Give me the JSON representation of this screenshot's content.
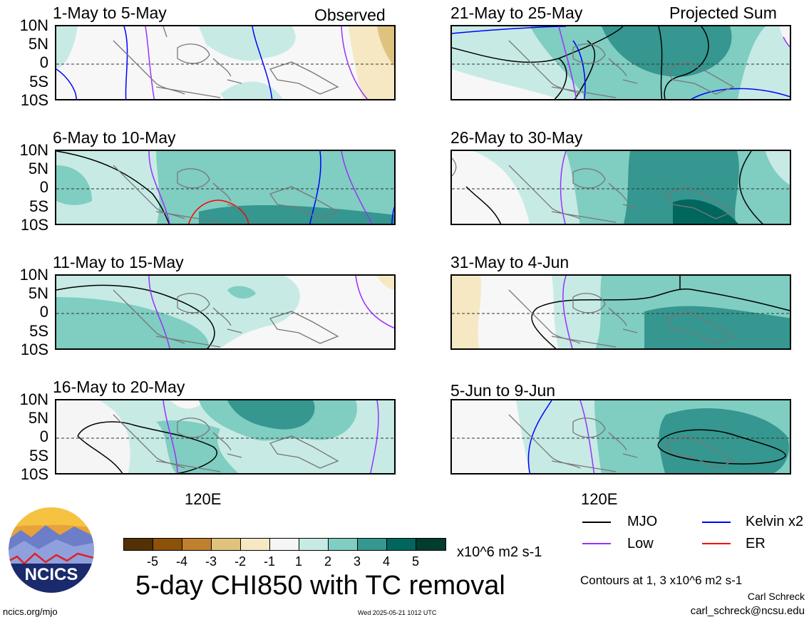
{
  "colors": {
    "scale": [
      "#543005",
      "#8c510a",
      "#bf812d",
      "#dfc27d",
      "#f6e8c3",
      "#f5f5f5",
      "#c7eae5",
      "#80cdc1",
      "#35978f",
      "#01665e",
      "#003c30"
    ],
    "mjo": "#000000",
    "kelvin": "#0000ff",
    "low": "#9b30ff",
    "er": "#ff0000"
  },
  "labels": {
    "observed": "Observed",
    "projected": "Projected Sum",
    "lat_ticks": [
      "10N",
      "5N",
      "0",
      "5S",
      "10S"
    ],
    "lon_tick": "120E"
  },
  "panels": [
    {
      "id": "p1",
      "title": "1-May to 5-May"
    },
    {
      "id": "p2",
      "title": "6-May to 10-May"
    },
    {
      "id": "p3",
      "title": "11-May to 15-May"
    },
    {
      "id": "p4",
      "title": "16-May to 20-May"
    },
    {
      "id": "p5",
      "title": "21-May to 25-May"
    },
    {
      "id": "p6",
      "title": "26-May to 30-May"
    },
    {
      "id": "p7",
      "title": "31-May to 4-Jun"
    },
    {
      "id": "p8",
      "title": "5-Jun to 9-Jun"
    }
  ],
  "colorbar": {
    "ticks": [
      "-5",
      "-4",
      "-3",
      "-2",
      "-1",
      "1",
      "2",
      "3",
      "4",
      "5"
    ],
    "units": "x10^6 m2 s-1"
  },
  "legend": {
    "mjo": "MJO",
    "low": "Low",
    "kelvin": "Kelvin x2",
    "er": "ER"
  },
  "main_title": "5-day CHI850 with TC removal",
  "contours_note": "Contours at 1, 3 x10^6 m2 s-1",
  "author": "Carl Schreck",
  "email": "carl_schreck@ncsu.edu",
  "site": "ncics.org/mjo",
  "timestamp": "Wed 2025-05-21 1012 UTC",
  "logo_text": "NCICS"
}
